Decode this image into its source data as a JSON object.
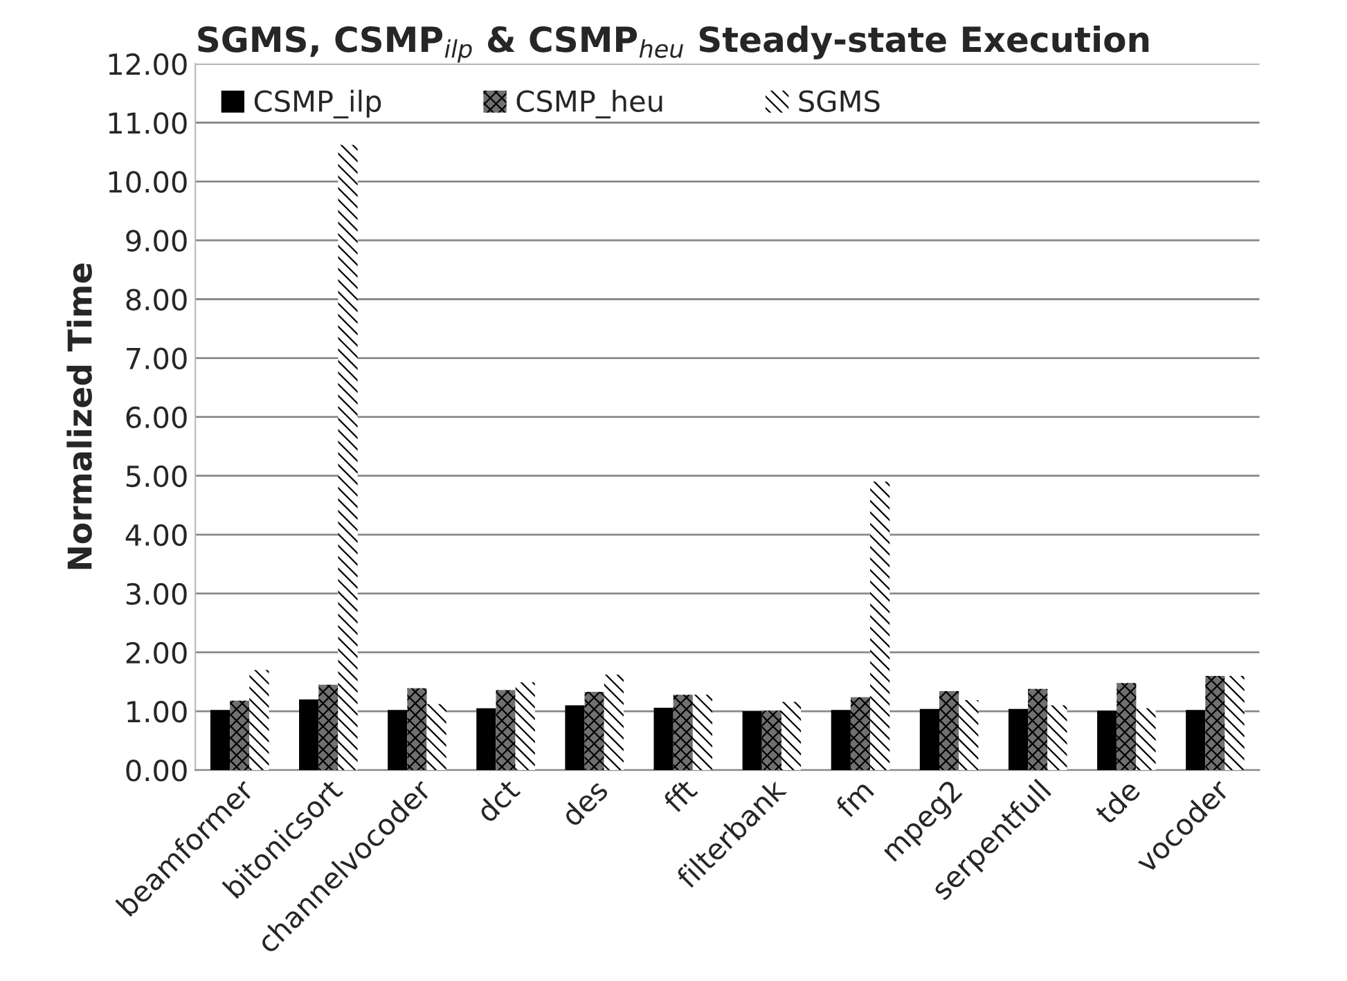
{
  "chart_data": {
    "type": "bar",
    "title": "SGMS, CSMP$_{ilp}$ & CSMP$_{heu}$ Steady-state Execution",
    "ylabel": "Normalized Time",
    "categories": [
      "beamformer",
      "bitonicsort",
      "channelvocoder",
      "dct",
      "des",
      "fft",
      "filterbank",
      "fm",
      "mpeg2",
      "serpentfull",
      "tde",
      "vocoder"
    ],
    "series": [
      {
        "name": "CSMP_ilp",
        "color": "#000000",
        "values": [
          1.02,
          1.2,
          1.02,
          1.05,
          1.1,
          1.06,
          1.0,
          1.02,
          1.04,
          1.04,
          1.01,
          1.02
        ]
      },
      {
        "name": "CSMP_heu",
        "color": "#707070",
        "values": [
          1.18,
          1.45,
          1.39,
          1.36,
          1.33,
          1.28,
          1.01,
          1.24,
          1.34,
          1.38,
          1.48,
          1.6
        ]
      },
      {
        "name": "SGMS",
        "color": "#ffffff",
        "values": [
          1.7,
          10.62,
          1.12,
          1.49,
          1.62,
          1.28,
          1.16,
          4.9,
          1.19,
          1.1,
          1.05,
          1.6
        ]
      }
    ],
    "ylim": [
      0,
      12
    ],
    "yticks": [
      {
        "value": 0,
        "label": "0.00"
      },
      {
        "value": 1,
        "label": "1.00"
      },
      {
        "value": 2,
        "label": "2.00"
      },
      {
        "value": 3,
        "label": "3.00"
      },
      {
        "value": 4,
        "label": "4.00"
      },
      {
        "value": 5,
        "label": "5.00"
      },
      {
        "value": 6,
        "label": "6.00"
      },
      {
        "value": 7,
        "label": "7.00"
      },
      {
        "value": 8,
        "label": "8.00"
      },
      {
        "value": 9,
        "label": "9.00"
      },
      {
        "value": 10,
        "label": "10.00"
      },
      {
        "value": 11,
        "label": "11.00"
      },
      {
        "value": 12,
        "label": "12.00"
      }
    ],
    "grid": "y",
    "legend": "top left"
  }
}
